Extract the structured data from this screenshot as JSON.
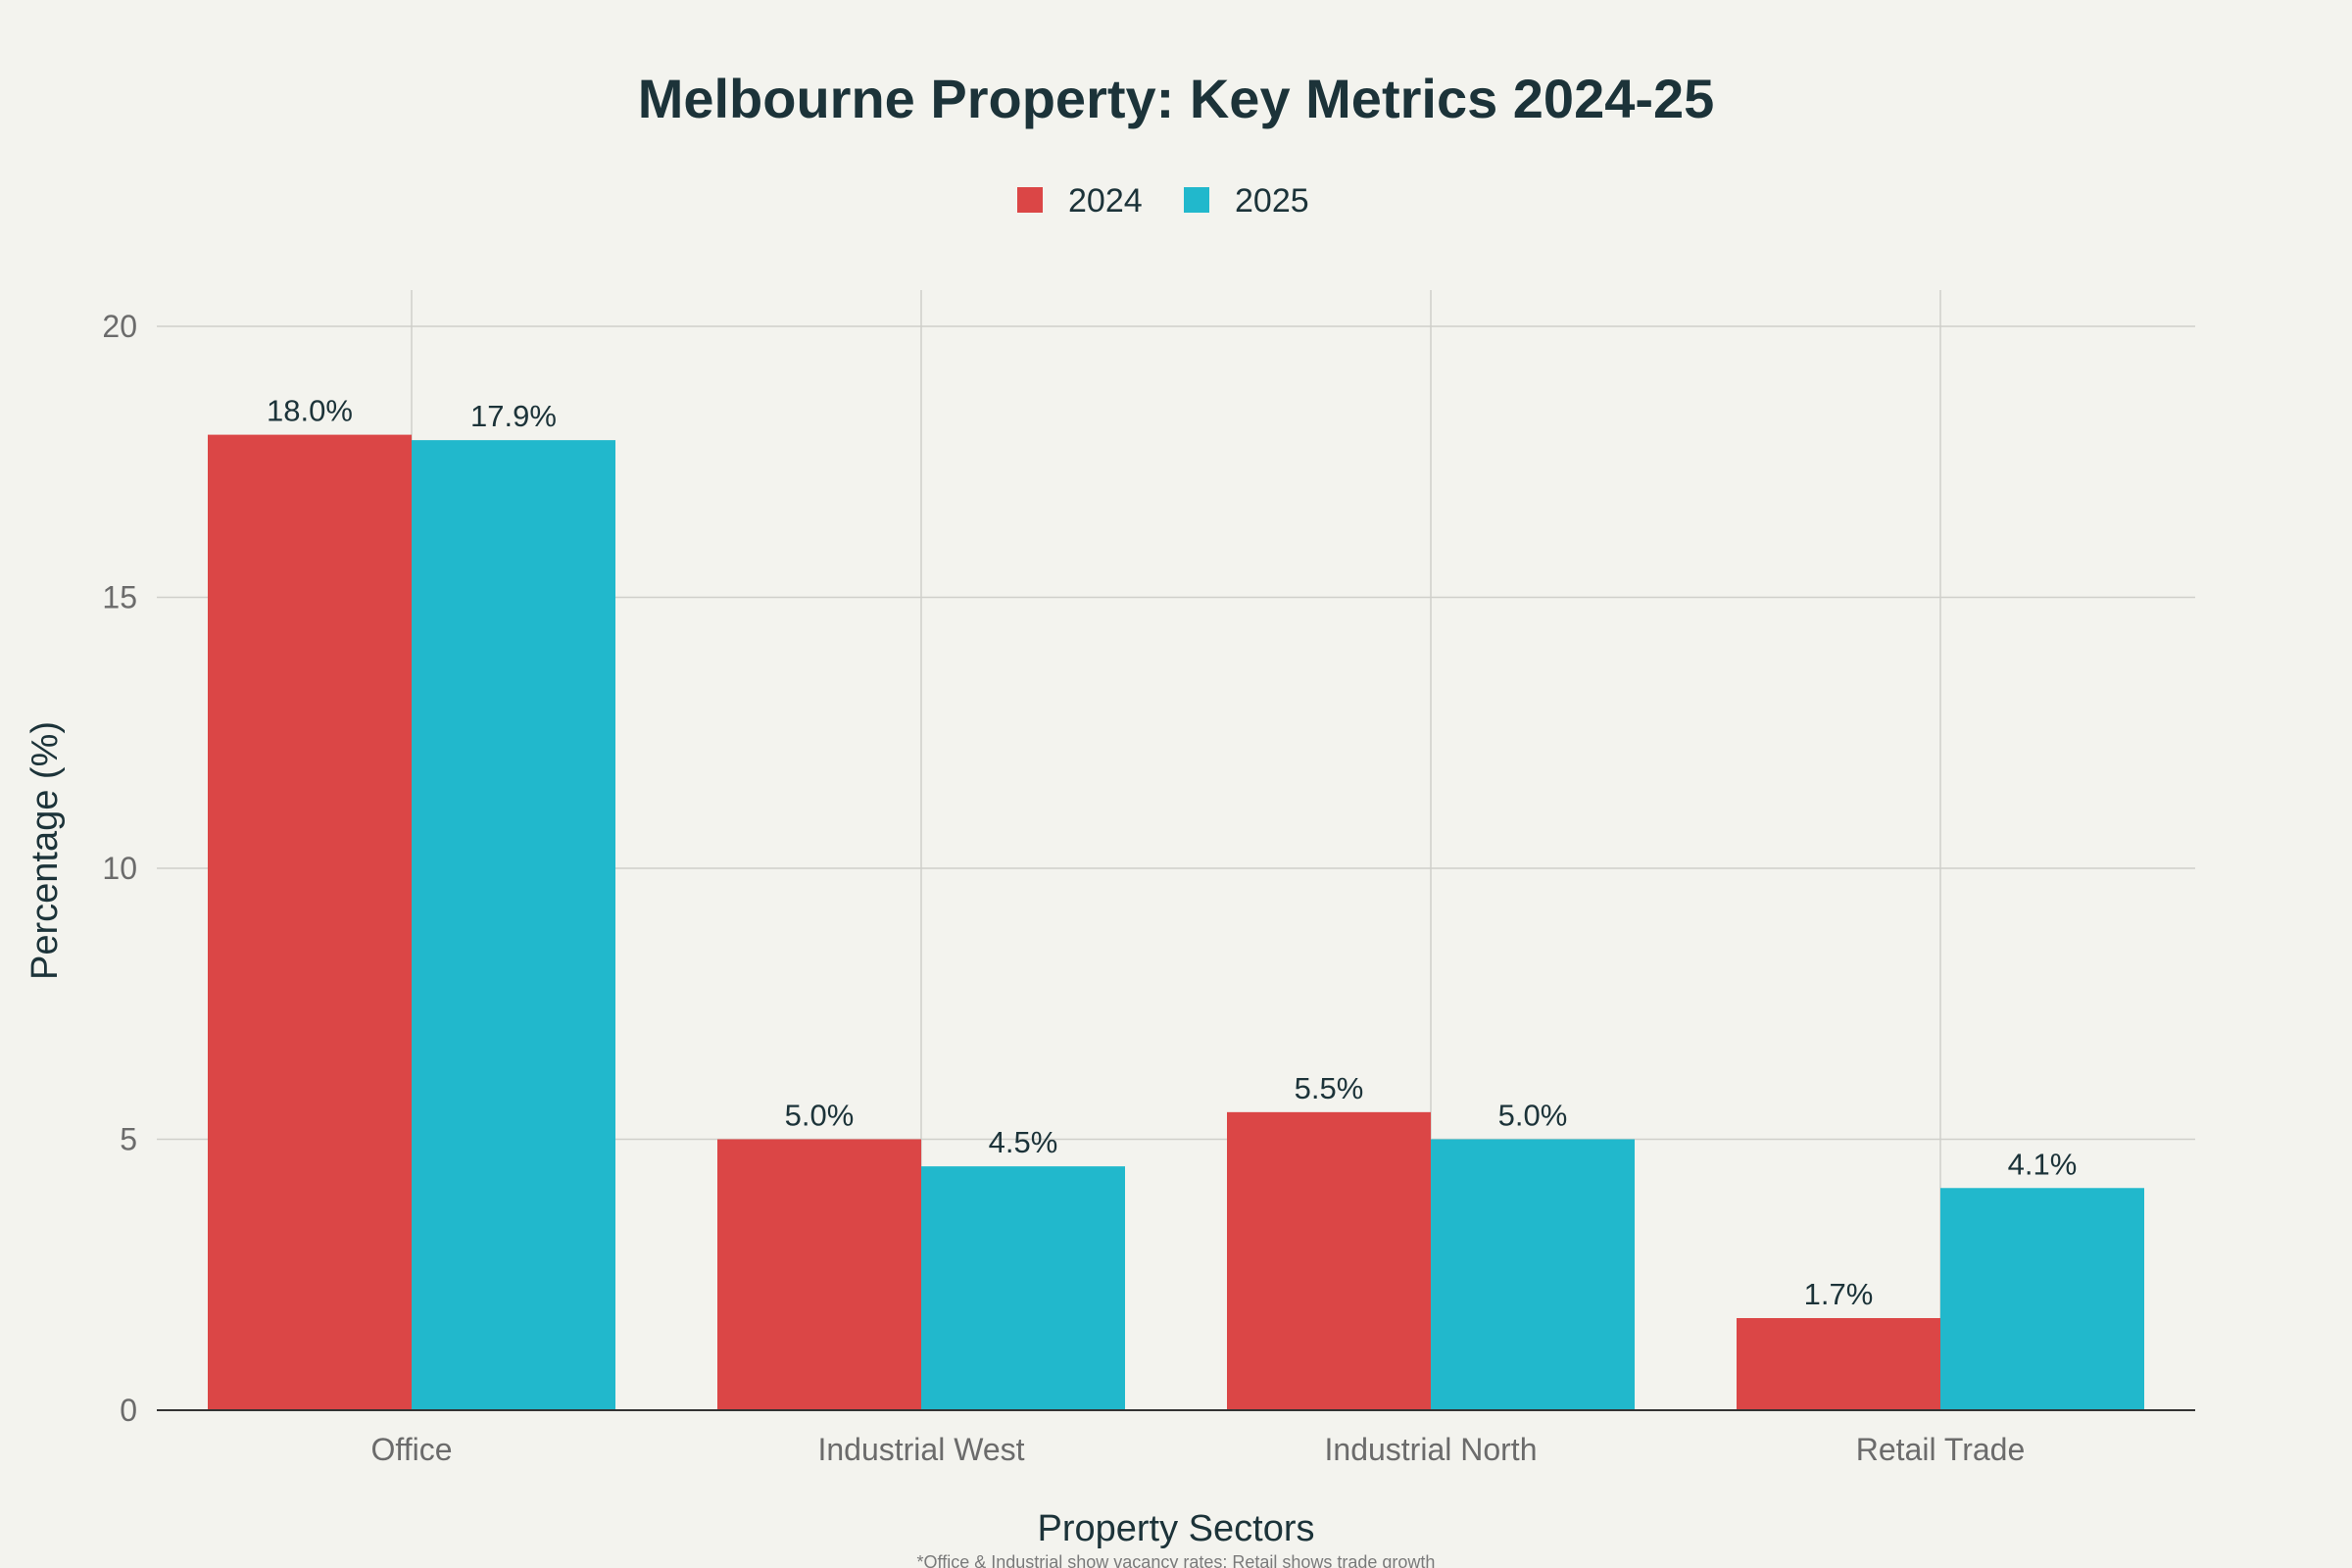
{
  "chart_data": {
    "type": "bar",
    "title": "Melbourne Property: Key Metrics 2024-25",
    "xlabel": "Property Sectors",
    "ylabel": "Percentage (%)",
    "categories": [
      "Office",
      "Industrial West",
      "Industrial North",
      "Retail Trade"
    ],
    "series": [
      {
        "name": "2024",
        "color": "#db4646",
        "values": [
          18.0,
          5.0,
          5.5,
          1.7
        ],
        "labels": [
          "18.0%",
          "5.0%",
          "5.5%",
          "1.7%"
        ]
      },
      {
        "name": "2025",
        "color": "#21b8cc",
        "values": [
          17.9,
          4.5,
          5.0,
          4.1
        ],
        "labels": [
          "17.9%",
          "4.5%",
          "5.0%",
          "4.1%"
        ]
      }
    ],
    "ylim": [
      0,
      20
    ],
    "yticks": [
      "0",
      "5",
      "10",
      "15",
      "20"
    ],
    "grid": true,
    "legend_position": "top-center",
    "footnote": "*Office & Industrial show vacancy rates; Retail shows trade growth"
  }
}
